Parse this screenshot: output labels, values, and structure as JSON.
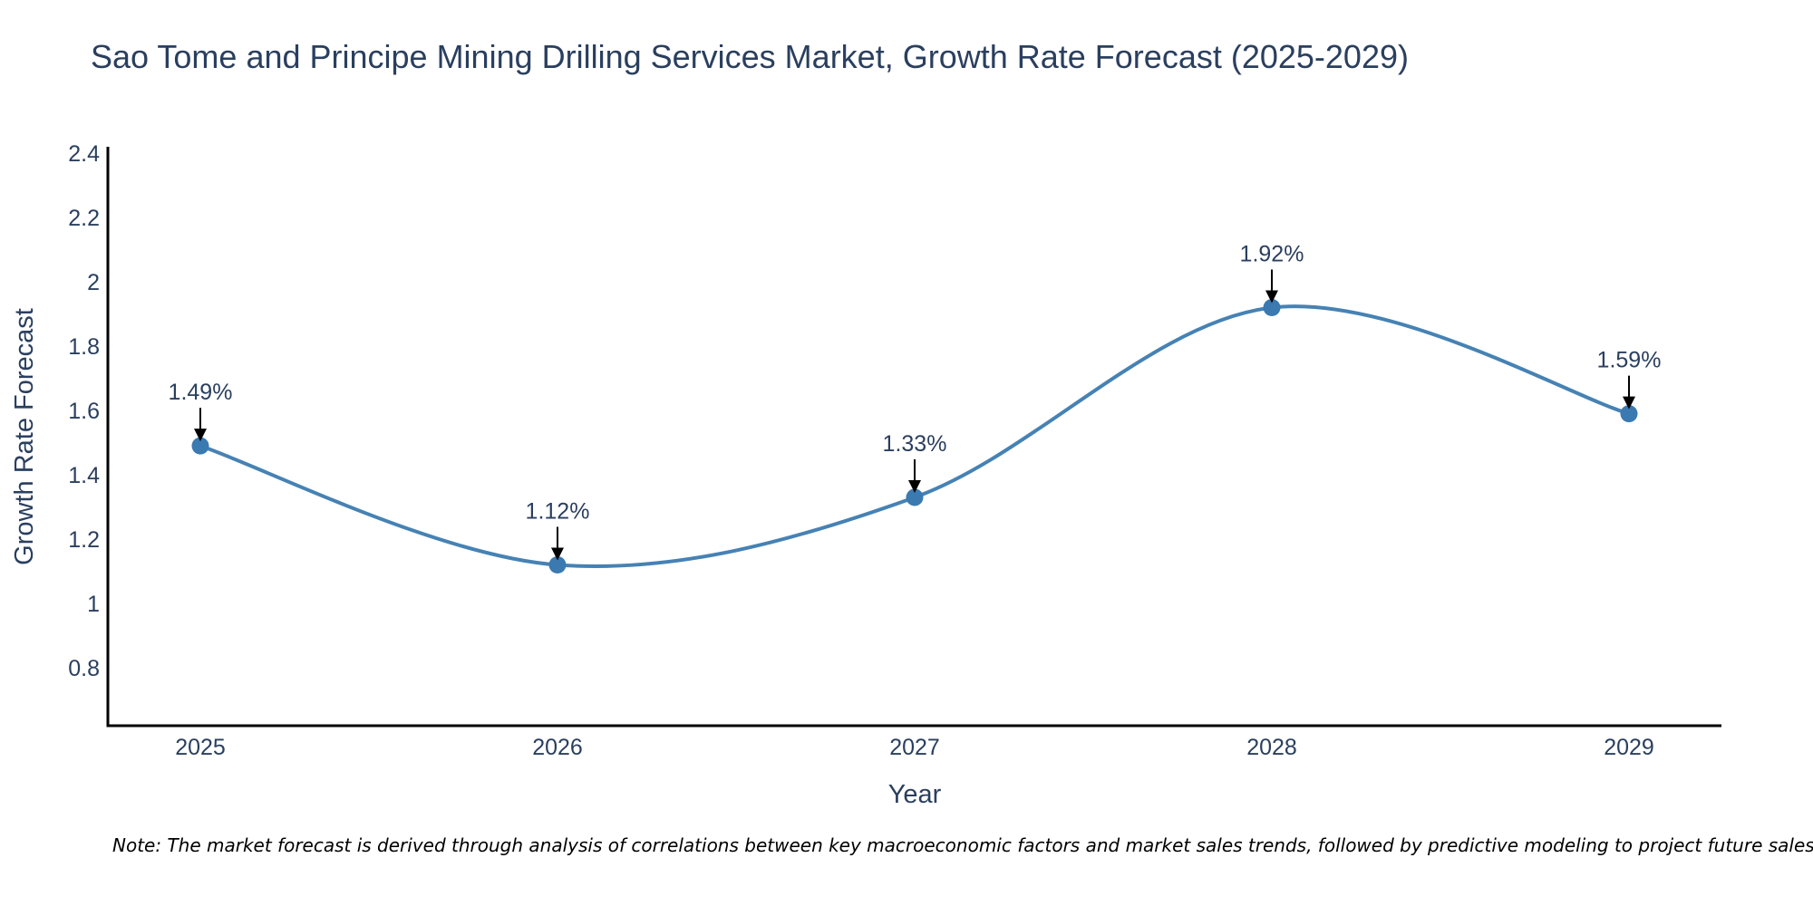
{
  "title": "Sao Tome and Principe Mining Drilling Services Market, Growth Rate Forecast (2025-2029)",
  "note": "Note: The market forecast is derived through analysis of correlations between key macroeconomic factors and market sales trends, followed by predictive modeling to project future sales.",
  "colors": {
    "line": "#4682b4",
    "marker": "#3b79b1",
    "axis": "#000000",
    "text": "#2a3f5f",
    "arrow": "#000000"
  },
  "chart_data": {
    "type": "line",
    "title": "Sao Tome and Principe Mining Drilling Services Market, Growth Rate Forecast (2025-2029)",
    "xlabel": "Year",
    "ylabel": "Growth Rate Forecast",
    "categories": [
      "2025",
      "2026",
      "2027",
      "2028",
      "2029"
    ],
    "values": [
      1.49,
      1.12,
      1.33,
      1.92,
      1.59
    ],
    "data_labels": [
      "1.49%",
      "1.12%",
      "1.33%",
      "1.92%",
      "1.59%"
    ],
    "ylim": [
      0.62,
      2.42
    ],
    "yticks": [
      0.8,
      1,
      1.2,
      1.4,
      1.6,
      1.8,
      2,
      2.2,
      2.4
    ],
    "ytick_labels": [
      "0.8",
      "1",
      "1.2",
      "1.4",
      "1.6",
      "1.8",
      "2",
      "2.2",
      "2.4"
    ],
    "line_shape": "spline",
    "grid": false,
    "legend": "none"
  }
}
